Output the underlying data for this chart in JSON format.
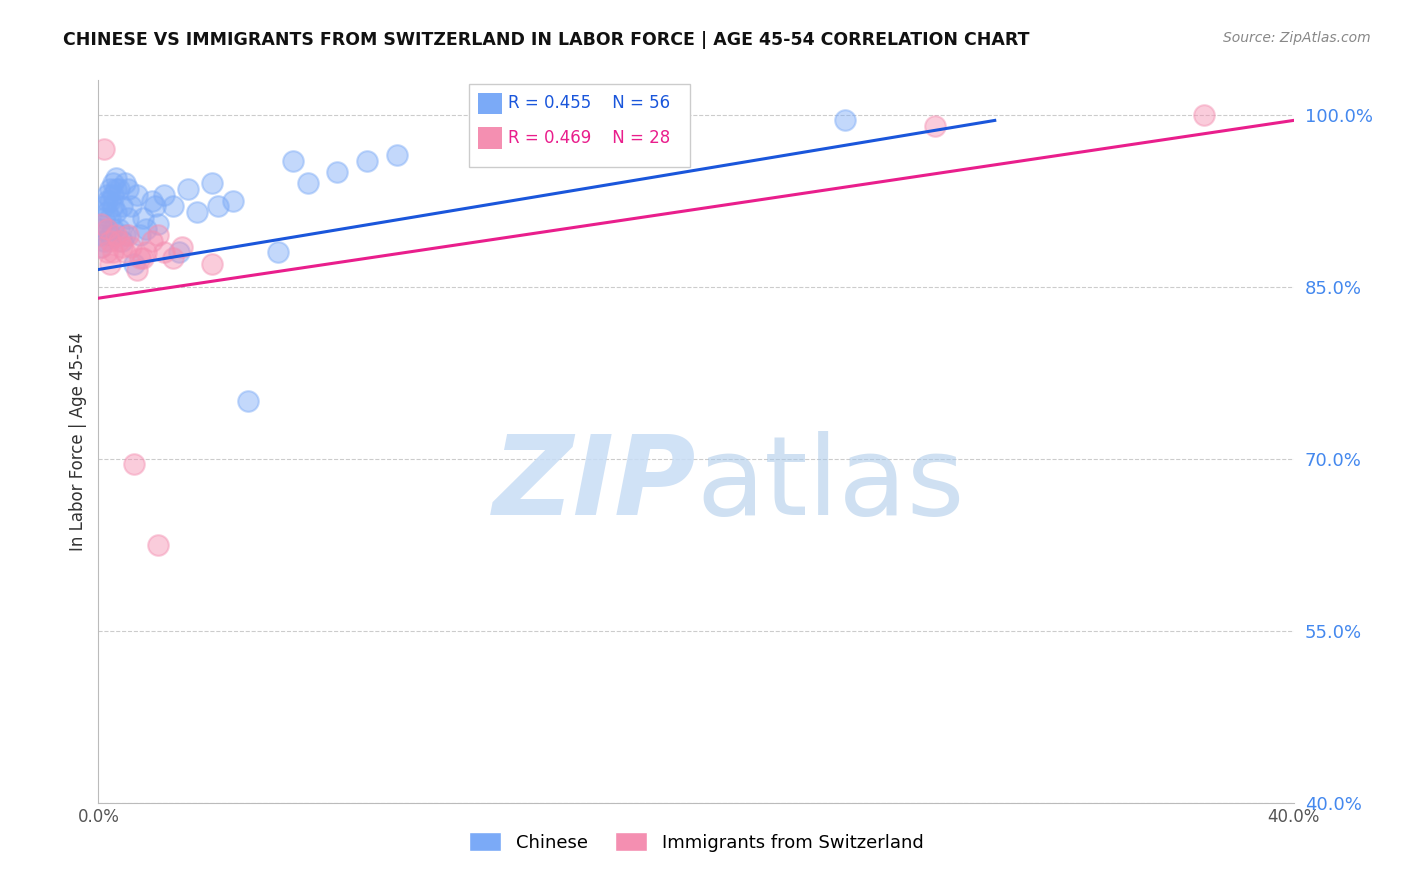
{
  "title": "CHINESE VS IMMIGRANTS FROM SWITZERLAND IN LABOR FORCE | AGE 45-54 CORRELATION CHART",
  "source": "Source: ZipAtlas.com",
  "ylabel": "In Labor Force | Age 45-54",
  "xlim": [
    0.0,
    0.4
  ],
  "ylim": [
    0.4,
    1.03
  ],
  "yticks": [
    0.4,
    0.55,
    0.7,
    0.85,
    1.0
  ],
  "ytick_labels": [
    "40.0%",
    "55.0%",
    "70.0%",
    "85.0%",
    "100.0%"
  ],
  "xticks": [
    0.0,
    0.05,
    0.1,
    0.15,
    0.2,
    0.25,
    0.3,
    0.35,
    0.4
  ],
  "xtick_labels": [
    "0.0%",
    "",
    "",
    "",
    "",
    "",
    "",
    "",
    "40.0%"
  ],
  "blue_color": "#7baaf7",
  "pink_color": "#f48fb1",
  "trend_blue": "#1a56db",
  "trend_pink": "#e91e8c",
  "blue_scatter": {
    "x": [
      0.001,
      0.001,
      0.001,
      0.002,
      0.002,
      0.002,
      0.003,
      0.003,
      0.003,
      0.003,
      0.004,
      0.004,
      0.004,
      0.004,
      0.005,
      0.005,
      0.005,
      0.005,
      0.006,
      0.006,
      0.006,
      0.007,
      0.007,
      0.008,
      0.008,
      0.009,
      0.009,
      0.01,
      0.01,
      0.011,
      0.012,
      0.013,
      0.014,
      0.015,
      0.016,
      0.018,
      0.019,
      0.02,
      0.022,
      0.025,
      0.027,
      0.03,
      0.033,
      0.038,
      0.04,
      0.045,
      0.05,
      0.06,
      0.065,
      0.07,
      0.08,
      0.09,
      0.1,
      0.13,
      0.17,
      0.25
    ],
    "y": [
      0.9,
      0.895,
      0.885,
      0.92,
      0.91,
      0.89,
      0.93,
      0.925,
      0.915,
      0.9,
      0.935,
      0.925,
      0.91,
      0.895,
      0.94,
      0.93,
      0.92,
      0.9,
      0.945,
      0.935,
      0.915,
      0.935,
      0.9,
      0.92,
      0.89,
      0.94,
      0.895,
      0.935,
      0.91,
      0.92,
      0.87,
      0.93,
      0.895,
      0.91,
      0.9,
      0.925,
      0.92,
      0.905,
      0.93,
      0.92,
      0.88,
      0.935,
      0.915,
      0.94,
      0.92,
      0.925,
      0.75,
      0.88,
      0.96,
      0.94,
      0.95,
      0.96,
      0.965,
      0.975,
      0.985,
      0.995
    ]
  },
  "pink_scatter": {
    "x": [
      0.001,
      0.001,
      0.002,
      0.003,
      0.003,
      0.004,
      0.004,
      0.005,
      0.006,
      0.007,
      0.008,
      0.009,
      0.01,
      0.011,
      0.013,
      0.015,
      0.016,
      0.018,
      0.02,
      0.022,
      0.025,
      0.028,
      0.014,
      0.038,
      0.012,
      0.02,
      0.28,
      0.37
    ],
    "y": [
      0.905,
      0.885,
      0.97,
      0.9,
      0.88,
      0.89,
      0.87,
      0.88,
      0.895,
      0.89,
      0.885,
      0.88,
      0.895,
      0.885,
      0.865,
      0.875,
      0.88,
      0.89,
      0.895,
      0.88,
      0.875,
      0.885,
      0.875,
      0.87,
      0.695,
      0.625,
      0.99,
      1.0
    ]
  },
  "blue_trend_x0": 0.0,
  "blue_trend_x1": 0.3,
  "blue_trend_y0": 0.865,
  "blue_trend_y1": 0.995,
  "pink_trend_x0": 0.0,
  "pink_trend_x1": 0.4,
  "pink_trend_y0": 0.84,
  "pink_trend_y1": 0.995
}
